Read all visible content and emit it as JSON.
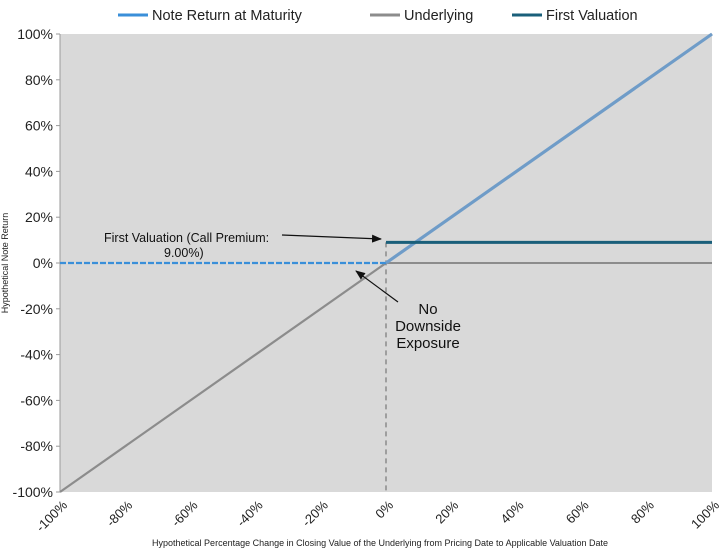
{
  "chart_data": {
    "type": "line",
    "xlabel": "Hypothetical Percentage Change in Closing Value of the Underlying from Pricing Date to Applicable Valuation Date",
    "ylabel": "Hypothetical Note Return",
    "xlim": [
      -100,
      100
    ],
    "ylim": [
      -100,
      100
    ],
    "x_ticks": [
      "-100%",
      "-80%",
      "-60%",
      "-40%",
      "-20%",
      "0%",
      "20%",
      "40%",
      "60%",
      "80%",
      "100%"
    ],
    "y_ticks": [
      "100%",
      "80%",
      "60%",
      "40%",
      "20%",
      "0%",
      "-20%",
      "-40%",
      "-60%",
      "-80%",
      "-100%"
    ],
    "x_tick_values": [
      -100,
      -80,
      -60,
      -40,
      -20,
      0,
      20,
      40,
      60,
      80,
      100
    ],
    "y_tick_values": [
      100,
      80,
      60,
      40,
      20,
      0,
      -20,
      -40,
      -60,
      -80,
      -100
    ],
    "legend_position": "top",
    "grid": false,
    "background_color": "#d9d9d9",
    "series": [
      {
        "name": "Note Return at Maturity",
        "color": "#3a8fd9",
        "dashed_segment": true,
        "points": [
          [
            -100,
            0
          ],
          [
            0,
            0
          ],
          [
            100,
            100
          ]
        ]
      },
      {
        "name": "Underlying",
        "color": "#8c8c8c",
        "points": [
          [
            -100,
            -100
          ],
          [
            100,
            100
          ]
        ]
      },
      {
        "name": "First Valuation",
        "color": "#1a5f7a",
        "points": [
          [
            0,
            9
          ],
          [
            100,
            9
          ]
        ]
      }
    ],
    "annotations": [
      {
        "lines": [
          "First Valuation (Call Premium:",
          "9.00%)"
        ]
      },
      {
        "lines": [
          "No",
          "Downside",
          "Exposure"
        ]
      }
    ]
  }
}
